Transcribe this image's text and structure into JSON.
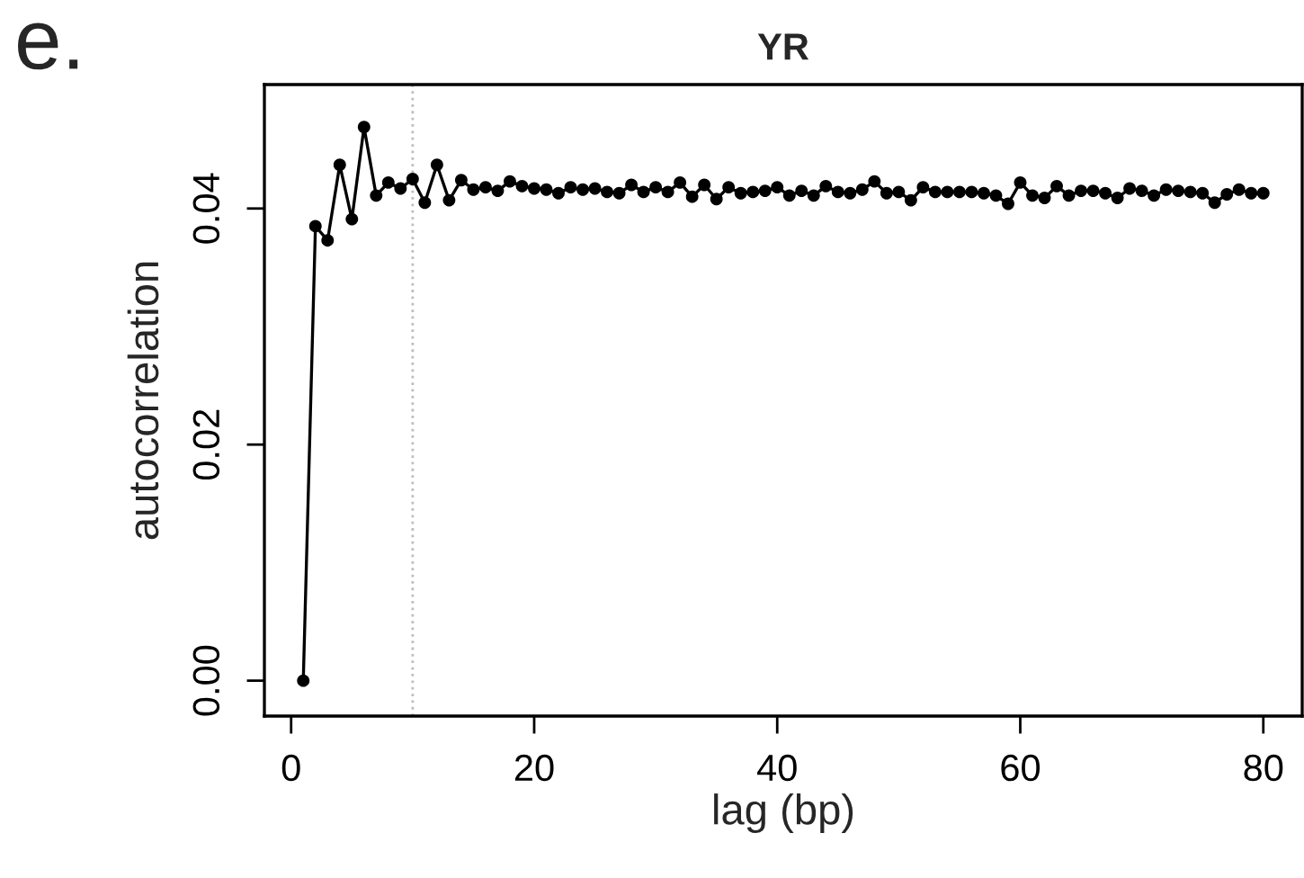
{
  "chart_data": {
    "type": "line",
    "title": "YR",
    "xlabel": "lag (bp)",
    "ylabel": "autocorrelation",
    "annotations": [
      "e."
    ],
    "x": [
      1,
      2,
      3,
      4,
      5,
      6,
      7,
      8,
      9,
      10,
      11,
      12,
      13,
      14,
      15,
      16,
      17,
      18,
      19,
      20,
      21,
      22,
      23,
      24,
      25,
      26,
      27,
      28,
      29,
      30,
      31,
      32,
      33,
      34,
      35,
      36,
      37,
      38,
      39,
      40,
      41,
      42,
      43,
      44,
      45,
      46,
      47,
      48,
      49,
      50,
      51,
      52,
      53,
      54,
      55,
      56,
      57,
      58,
      59,
      60,
      61,
      62,
      63,
      64,
      65,
      66,
      67,
      68,
      69,
      70,
      71,
      72,
      73,
      74,
      75,
      76,
      77,
      78,
      79,
      80
    ],
    "series": [
      {
        "color": "#000000",
        "values": [
          0,
          0.0385,
          0.0373,
          0.0437,
          0.0391,
          0.0469,
          0.0411,
          0.0422,
          0.0417,
          0.0425,
          0.0405,
          0.0437,
          0.0407,
          0.0424,
          0.0416,
          0.0418,
          0.0415,
          0.0423,
          0.0419,
          0.0417,
          0.0416,
          0.0413,
          0.0418,
          0.0416,
          0.0417,
          0.0414,
          0.0413,
          0.042,
          0.0414,
          0.0418,
          0.0414,
          0.0422,
          0.041,
          0.042,
          0.0408,
          0.0418,
          0.0413,
          0.0414,
          0.0415,
          0.0418,
          0.0411,
          0.0415,
          0.0411,
          0.0419,
          0.0414,
          0.0413,
          0.0416,
          0.0423,
          0.0413,
          0.0414,
          0.0407,
          0.0418,
          0.0414,
          0.0414,
          0.0414,
          0.0414,
          0.0413,
          0.0411,
          0.0404,
          0.0422,
          0.0411,
          0.0409,
          0.0419,
          0.0411,
          0.0415,
          0.0415,
          0.0413,
          0.0409,
          0.0417,
          0.0415,
          0.0411,
          0.0416,
          0.0415,
          0.0414,
          0.0413,
          0.0405,
          0.0412,
          0.0416,
          0.0413,
          0.0413
        ]
      }
    ],
    "marker": "circle",
    "line_style": "solid",
    "xlim": [
      -2.2,
      83.2
    ],
    "xticks": [
      0,
      20,
      40,
      60,
      80
    ],
    "ylim": [
      -0.003,
      0.0505
    ],
    "yticks": [
      {
        "value": 0,
        "label": "0.00"
      },
      {
        "value": 0.02,
        "label": "0.02"
      },
      {
        "value": 0.04,
        "label": "0.04"
      }
    ],
    "ref_lines": [
      {
        "axis": "x",
        "value": 10,
        "color": "#bebebe",
        "line_style": "dotted"
      }
    ],
    "grid": false,
    "legend": false
  }
}
